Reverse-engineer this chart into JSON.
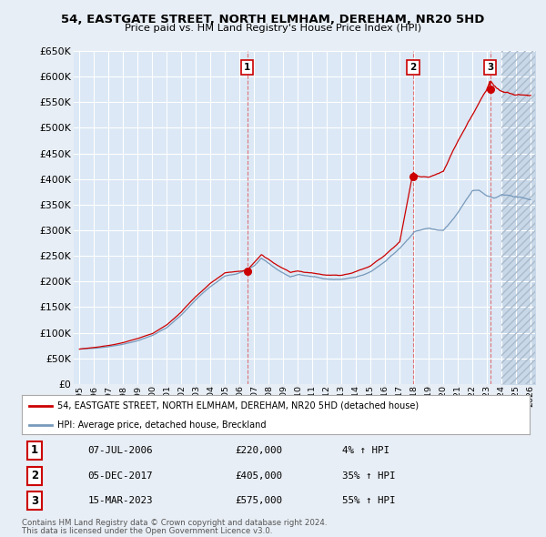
{
  "title": "54, EASTGATE STREET, NORTH ELMHAM, DEREHAM, NR20 5HD",
  "subtitle": "Price paid vs. HM Land Registry's House Price Index (HPI)",
  "ylim": [
    0,
    650000
  ],
  "yticks": [
    0,
    50000,
    100000,
    150000,
    200000,
    250000,
    300000,
    350000,
    400000,
    450000,
    500000,
    550000,
    600000,
    650000
  ],
  "xlim_start": 1994.6,
  "xlim_end": 2026.3,
  "sale_dates_decimal": [
    2006.52,
    2017.93,
    2023.21
  ],
  "sale_prices": [
    220000,
    405000,
    575000
  ],
  "sale_labels": [
    "1",
    "2",
    "3"
  ],
  "sale_date_strs": [
    "07-JUL-2006",
    "05-DEC-2017",
    "15-MAR-2023"
  ],
  "sale_price_strs": [
    "£220,000",
    "£405,000",
    "£575,000"
  ],
  "sale_pct_strs": [
    "4% ↑ HPI",
    "35% ↑ HPI",
    "55% ↑ HPI"
  ],
  "red_line_color": "#cc0000",
  "blue_line_color": "#7799bb",
  "marker_color": "#cc0000",
  "legend_label_red": "54, EASTGATE STREET, NORTH ELMHAM, DEREHAM, NR20 5HD (detached house)",
  "legend_label_blue": "HPI: Average price, detached house, Breckland",
  "footer_line1": "Contains HM Land Registry data © Crown copyright and database right 2024.",
  "footer_line2": "This data is licensed under the Open Government Licence v3.0.",
  "background_color": "#e8eef5",
  "plot_bg_color": "#dce8f5",
  "grid_color": "#ffffff",
  "hatch_region_start": 2024.0,
  "vline_color": "#dd4444"
}
